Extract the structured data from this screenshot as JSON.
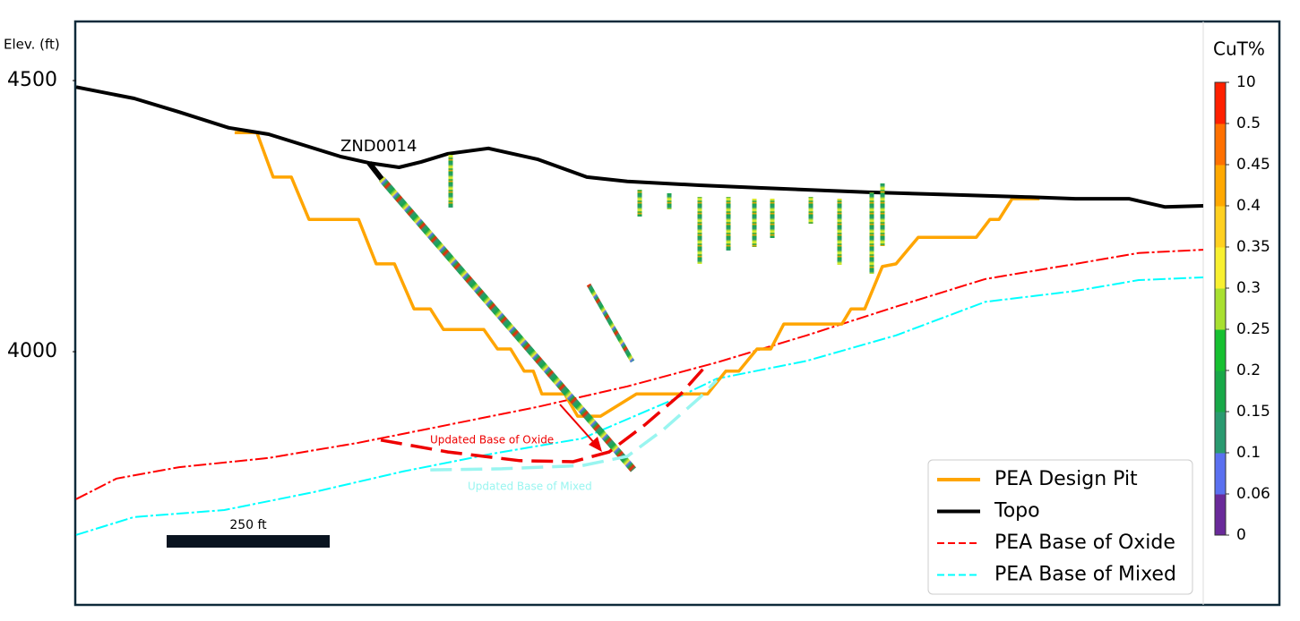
{
  "chart_data": {
    "type": "line",
    "y_label": "Elev. (ft)",
    "ylim": [
      3535,
      4607
    ],
    "yticks": [
      4000,
      4500
    ],
    "xlim": [
      0,
      1728
    ],
    "series": [
      {
        "name": "PEA Design Pit",
        "color": "#ffa500",
        "dash": false,
        "x": [
          243,
          277,
          302,
          330,
          357,
          433,
          460,
          488,
          518,
          543,
          563,
          625,
          646,
          666,
          687,
          701,
          714,
          749,
          769,
          804,
          859,
          968,
          996,
          1016,
          1044,
          1065,
          1085,
          1174,
          1188,
          1209,
          1236,
          1257,
          1291,
          1380,
          1401,
          1415,
          1435,
          1477
        ],
        "values": [
          4404,
          4404,
          4322,
          4322,
          4244,
          4244,
          4162,
          4162,
          4079,
          4079,
          4041,
          4041,
          4005,
          4005,
          3964,
          3964,
          3922,
          3922,
          3881,
          3881,
          3922,
          3922,
          3964,
          3964,
          4005,
          4005,
          4051,
          4051,
          4079,
          4079,
          4157,
          4162,
          4211,
          4211,
          4244,
          4244,
          4282,
          4282
        ]
      },
      {
        "name": "Topo",
        "color": "#000000",
        "dash": false,
        "x": [
          0,
          89,
          158,
          234,
          295,
          405,
          449,
          495,
          529,
          570,
          632,
          707,
          783,
          845,
          955,
          1051,
          1216,
          1326,
          1463,
          1532,
          1614,
          1669,
          1728
        ],
        "values": [
          4488,
          4467,
          4442,
          4413,
          4401,
          4360,
          4348,
          4340,
          4350,
          4365,
          4375,
          4355,
          4322,
          4314,
          4307,
          4302,
          4294,
          4290,
          4285,
          4282,
          4282,
          4267,
          4269
        ]
      },
      {
        "name": "PEA Base of Oxide",
        "color": "#ff0000",
        "dash": true,
        "x": [
          0,
          62,
          158,
          295,
          433,
          570,
          707,
          845,
          982,
          1120,
          1257,
          1394,
          1532,
          1629,
          1728
        ],
        "values": [
          3728,
          3766,
          3787,
          3804,
          3832,
          3865,
          3898,
          3936,
          3980,
          4030,
          4083,
          4134,
          4162,
          4182,
          4188
        ]
      },
      {
        "name": "PEA Base of Mixed",
        "color": "#00ffff",
        "dash": true,
        "x": [
          0,
          89,
          227,
          364,
          501,
          639,
          776,
          914,
          982,
          1120,
          1257,
          1394,
          1532,
          1629,
          1728
        ],
        "values": [
          3662,
          3695,
          3708,
          3741,
          3779,
          3812,
          3840,
          3911,
          3950,
          3983,
          4030,
          4092,
          4112,
          4132,
          4137
        ]
      }
    ],
    "annotation_lines": [
      {
        "label": "Updated Base of Oxide",
        "color": "#ee0000",
        "x": [
          467,
          570,
          680,
          762,
          817,
          872,
          927,
          962
        ],
        "y": [
          3837,
          3815,
          3799,
          3797,
          3815,
          3865,
          3922,
          3969
        ]
      },
      {
        "label": "Updated Base of Mixed",
        "color": "#99f5f0",
        "x": [
          543,
          652,
          776,
          845,
          900,
          955,
          982
        ],
        "y": [
          3782,
          3784,
          3790,
          3807,
          3856,
          3914,
          3947
        ]
      }
    ],
    "drillhole_label": "ZND0014",
    "scale_bar": {
      "label": "250 ft",
      "length": 250
    },
    "legend": "lower right",
    "colorbar": {
      "title": "CuT%",
      "ticks": [
        0,
        0.06,
        0.1,
        0.15,
        0.2,
        0.25,
        0.3,
        0.35,
        0.4,
        0.45,
        0.5,
        10
      ],
      "colors": [
        "#6a2a9a",
        "#5a70f0",
        "#2a9a70",
        "#18a848",
        "#16c030",
        "#a8e030",
        "#f8f030",
        "#ffd020",
        "#ffa800",
        "#ff7000",
        "#ff2000"
      ]
    }
  }
}
